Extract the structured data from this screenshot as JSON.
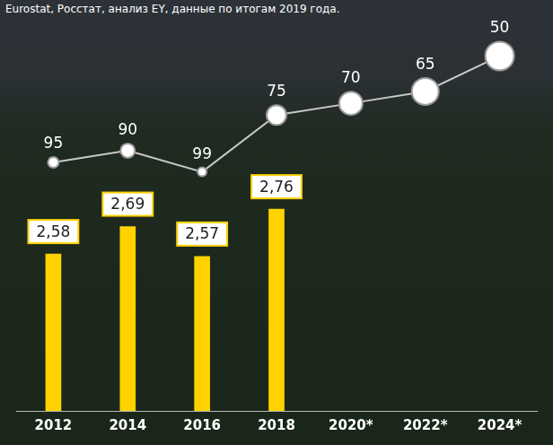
{
  "chart_data": {
    "type": "bar",
    "annotation": "Eurostat, Росстат, анализ EY, данные по итогам 2019 года.",
    "categories": [
      "2012",
      "2014",
      "2016",
      "2018",
      "2020*",
      "2022*",
      "2024*"
    ],
    "series": [
      {
        "type": "bar",
        "color": "#ffd200",
        "values": [
          2.58,
          2.69,
          2.57,
          2.76,
          null,
          null,
          null
        ],
        "value_labels": [
          "2,58",
          "2,69",
          "2,57",
          "2,76",
          null,
          null,
          null
        ],
        "data_labels": true
      },
      {
        "type": "line",
        "axis": "y2",
        "color": "#c8c8c8",
        "marker": "circle",
        "line_style": "solid",
        "values": [
          95,
          90,
          99,
          75,
          70,
          65,
          50
        ],
        "data_labels": true
      }
    ],
    "ylim": [
      1.95,
      3.47
    ],
    "y2lim": [
      200,
      40
    ],
    "tick_labels": "x",
    "grid": false
  }
}
